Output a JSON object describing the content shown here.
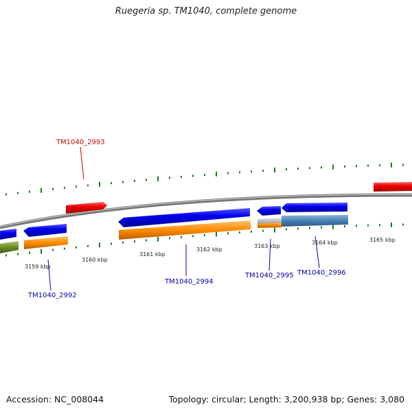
{
  "title": "Ruegeria sp. TM1040, complete genome",
  "footer": {
    "accession_label": "Accession:",
    "accession": "NC_008044",
    "topology_label": "Topology:",
    "topology": "circular",
    "length_label": "Length:",
    "length": "3,200,938 bp",
    "genes_label": "Genes:",
    "genes": "3,080"
  },
  "ticks": [
    "3159 kbp",
    "3160 kbp",
    "3161 kbp",
    "3162 kbp",
    "3163 kbp",
    "3164 kbp",
    "3165 kbp"
  ],
  "genes": [
    {
      "id": "TM1040_2993",
      "color": "#cc0000"
    },
    {
      "id": "TM1040_2992",
      "color": "#0000aa"
    },
    {
      "id": "TM1040_2994",
      "color": "#0000aa"
    },
    {
      "id": "TM1040_2995",
      "color": "#0000aa"
    },
    {
      "id": "TM1040_2996",
      "color": "#0000aa"
    }
  ],
  "colors": {
    "backbone": "#8a8a8a",
    "cds_forward": "#ff0000",
    "cds_reverse": "#0000ee",
    "feature_orange": "#ff8c00",
    "feature_steel": "#4682b4",
    "feature_olive": "#6b8e23",
    "gc_skew_ticks": "#1a7a1a"
  }
}
